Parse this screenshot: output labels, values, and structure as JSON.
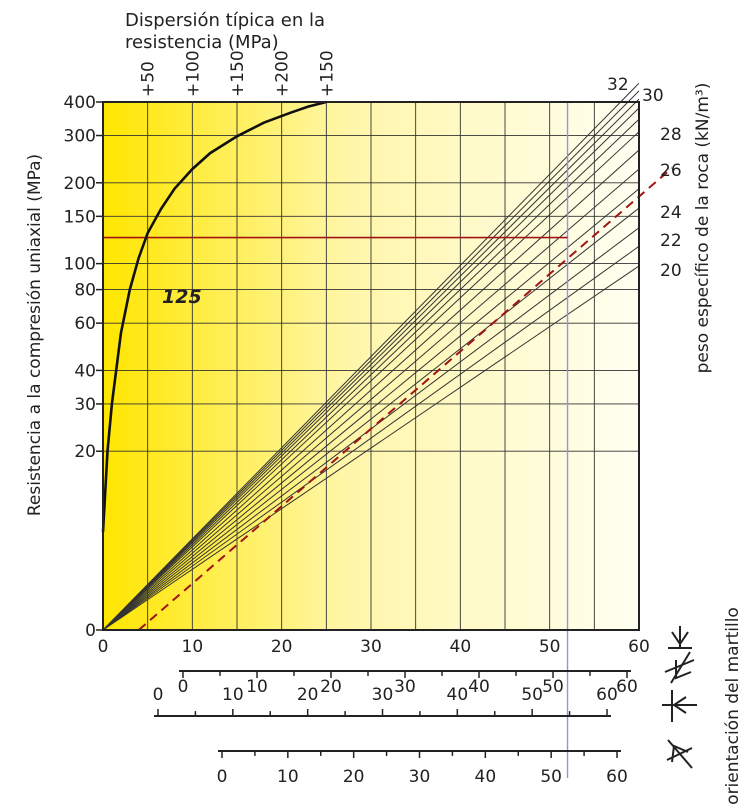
{
  "chart_data": {
    "type": "line",
    "title": "Dispersión típica en la resistencia (MPa)",
    "title_lines": [
      "Dispersión típica en la",
      "resistencia (MPa)"
    ],
    "ylabel": "Resistencia a la compresión uniaxial (MPa)",
    "ylabel_right": "peso específico de la roca (kN/m³)",
    "hammer_label": "orientación del martillo",
    "annotation": "125",
    "x": {
      "ticks": [
        "0",
        "10",
        "20",
        "30",
        "40",
        "50",
        "60"
      ],
      "range": [
        0,
        60
      ],
      "grid_step": 5
    },
    "x_scales_extra": [
      {
        "ticks": [
          "0",
          "10",
          "20",
          "30",
          "40",
          "50",
          "60"
        ],
        "range": [
          0,
          60
        ]
      },
      {
        "ticks": [
          "0",
          "10",
          "20",
          "30",
          "40",
          "50",
          "60"
        ],
        "range": [
          0,
          60
        ]
      },
      {
        "ticks": [
          "0",
          "10",
          "20",
          "30",
          "40",
          "50",
          "60"
        ],
        "range": [
          0,
          60
        ]
      }
    ],
    "y": {
      "ticks": [
        "0",
        "20",
        "30",
        "40",
        "60",
        "80",
        "100",
        "150",
        "200",
        "300",
        "400"
      ],
      "scale": "log (10 at bottom)"
    },
    "dispersion_ticks": [
      "+50",
      "+100",
      "+150",
      "+200",
      "+150"
    ],
    "density_labels": [
      "20",
      "22",
      "24",
      "26",
      "28",
      "30",
      "32"
    ],
    "density_lines": [
      20,
      21,
      22,
      23,
      24,
      25,
      26,
      27,
      28,
      29,
      30,
      31,
      32
    ],
    "strength_at_x60": [
      98,
      116,
      136,
      161,
      190,
      225,
      265,
      310,
      345,
      380,
      410,
      440,
      470
    ],
    "dispersion_curve": [
      {
        "x": 0,
        "y": 10
      },
      {
        "x": 0.5,
        "y": 20
      },
      {
        "x": 1,
        "y": 30
      },
      {
        "x": 2,
        "y": 55
      },
      {
        "x": 3,
        "y": 80
      },
      {
        "x": 4,
        "y": 105
      },
      {
        "x": 5,
        "y": 130
      },
      {
        "x": 6.5,
        "y": 160
      },
      {
        "x": 8,
        "y": 190
      },
      {
        "x": 10,
        "y": 225
      },
      {
        "x": 12,
        "y": 258
      },
      {
        "x": 15,
        "y": 298
      },
      {
        "x": 18,
        "y": 335
      },
      {
        "x": 21,
        "y": 365
      },
      {
        "x": 23,
        "y": 385
      },
      {
        "x": 25,
        "y": 400
      }
    ],
    "reading": {
      "rebound": 52,
      "density": 26,
      "strength": 125,
      "line_color": "#a01414"
    },
    "colors": {
      "grid": "#333333",
      "bg_left": "#ffe600",
      "bg_right": "#fffff2",
      "curve": "#111111",
      "density_line": "#333333",
      "rebound_line": "#9f8fe0",
      "annotation": "#1a4a75"
    }
  }
}
